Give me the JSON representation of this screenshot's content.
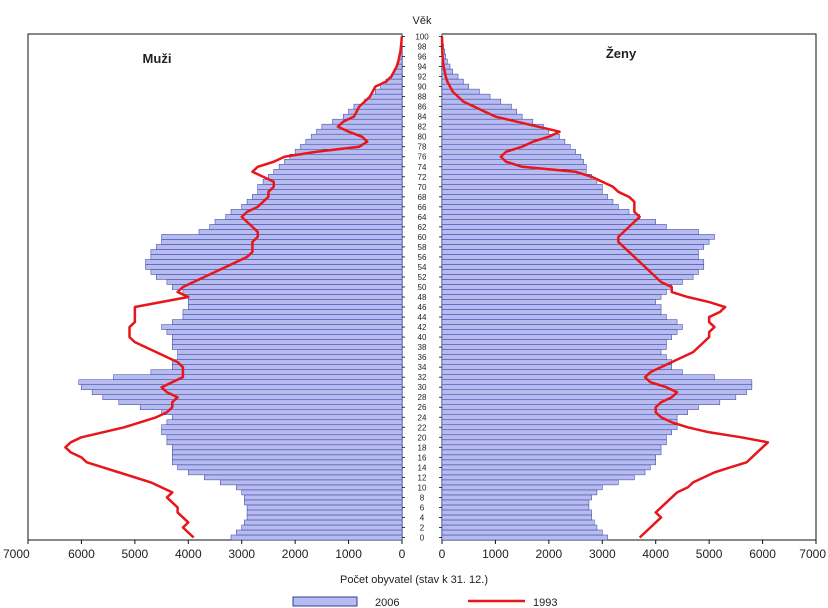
{
  "chart_data": {
    "type": "bar",
    "subtype": "population-pyramid",
    "title": "",
    "center_label": "Věk",
    "xlabel": "Počet obyvatel (stav k 31. 12.)",
    "panels": [
      {
        "name": "Muži",
        "side": "left"
      },
      {
        "name": "Ženy",
        "side": "right"
      }
    ],
    "xlim": [
      0,
      7000
    ],
    "x_ticks": [
      0,
      1000,
      2000,
      3000,
      4000,
      5000,
      6000,
      7000
    ],
    "age_range": [
      0,
      100
    ],
    "age_ticks": [
      0,
      2,
      4,
      6,
      8,
      10,
      12,
      14,
      16,
      18,
      20,
      22,
      24,
      26,
      28,
      30,
      32,
      34,
      36,
      38,
      40,
      42,
      44,
      46,
      48,
      50,
      52,
      54,
      56,
      58,
      60,
      62,
      64,
      66,
      68,
      70,
      72,
      74,
      76,
      78,
      80,
      82,
      84,
      86,
      88,
      90,
      92,
      94,
      96,
      98,
      100
    ],
    "legend": [
      {
        "label": "2006",
        "type": "bar",
        "color": "#b7bbee"
      },
      {
        "label": "1993",
        "type": "line",
        "color": "#e8161b"
      }
    ],
    "colors": {
      "bar_fill": "#b7bbee",
      "bar_stroke": "#2e3fa6",
      "line": "#e8161b"
    },
    "series": [
      {
        "name": "2006",
        "sex": "Muži",
        "values": [
          3200,
          3100,
          3000,
          2950,
          2900,
          2900,
          2900,
          2950,
          2950,
          3000,
          3100,
          3400,
          3700,
          4000,
          4200,
          4300,
          4300,
          4300,
          4300,
          4400,
          4400,
          4500,
          4500,
          4400,
          4300,
          4500,
          4900,
          5300,
          5600,
          5800,
          6000,
          6050,
          5400,
          4700,
          4300,
          4300,
          4200,
          4200,
          4300,
          4300,
          4300,
          4400,
          4500,
          4300,
          4100,
          4100,
          4000,
          4000,
          4000,
          4100,
          4300,
          4400,
          4600,
          4700,
          4800,
          4800,
          4700,
          4700,
          4600,
          4500,
          4500,
          3800,
          3600,
          3500,
          3300,
          3200,
          3000,
          2900,
          2800,
          2700,
          2700,
          2600,
          2500,
          2400,
          2300,
          2200,
          2100,
          2000,
          1900,
          1800,
          1700,
          1600,
          1500,
          1300,
          1100,
          1000,
          900,
          700,
          600,
          500,
          400,
          300,
          200,
          150,
          100,
          70,
          50,
          30,
          20,
          10,
          5
        ]
      },
      {
        "name": "1993",
        "sex": "Muži",
        "values": [
          3900,
          4000,
          4100,
          4000,
          4100,
          4200,
          4200,
          4300,
          4400,
          4300,
          4500,
          4700,
          5000,
          5300,
          5600,
          5900,
          6000,
          6200,
          6300,
          6200,
          6000,
          5600,
          5200,
          4900,
          4600,
          4400,
          4300,
          4300,
          4200,
          4400,
          4500,
          4300,
          4100,
          4100,
          4100,
          4200,
          4400,
          4600,
          4800,
          5000,
          5100,
          5100,
          5100,
          5000,
          5000,
          5000,
          5000,
          4500,
          4000,
          4200,
          4100,
          3900,
          3700,
          3500,
          3300,
          3100,
          2900,
          2800,
          2800,
          2800,
          2700,
          2700,
          2800,
          2900,
          3000,
          2900,
          2700,
          2600,
          2500,
          2500,
          2400,
          2400,
          2600,
          2800,
          2700,
          2400,
          2200,
          1600,
          800,
          650,
          750,
          1000,
          1200,
          1100,
          900,
          850,
          800,
          700,
          600,
          550,
          500,
          300,
          200,
          150,
          100,
          70,
          50,
          30,
          20,
          10,
          5
        ]
      },
      {
        "name": "2006",
        "sex": "Ženy",
        "values": [
          3100,
          3000,
          2900,
          2850,
          2800,
          2800,
          2750,
          2750,
          2800,
          2900,
          3000,
          3300,
          3600,
          3800,
          3900,
          4000,
          4000,
          4100,
          4100,
          4200,
          4200,
          4300,
          4400,
          4400,
          4400,
          4600,
          4800,
          5200,
          5500,
          5700,
          5800,
          5800,
          5100,
          4500,
          4300,
          4300,
          4200,
          4100,
          4200,
          4200,
          4300,
          4400,
          4500,
          4400,
          4200,
          4100,
          4100,
          4000,
          4100,
          4200,
          4300,
          4500,
          4700,
          4800,
          4900,
          4900,
          4800,
          4800,
          4900,
          5000,
          5100,
          4800,
          4200,
          4000,
          3700,
          3500,
          3300,
          3200,
          3100,
          3000,
          3000,
          2900,
          2800,
          2700,
          2700,
          2650,
          2600,
          2500,
          2400,
          2300,
          2200,
          2000,
          1900,
          1700,
          1500,
          1400,
          1300,
          1100,
          900,
          700,
          500,
          400,
          300,
          200,
          150,
          100,
          70,
          50,
          30,
          15,
          5
        ]
      },
      {
        "name": "1993",
        "sex": "Ženy",
        "values": [
          3700,
          3800,
          3900,
          4000,
          4100,
          4000,
          4100,
          4200,
          4300,
          4400,
          4600,
          4700,
          4900,
          5100,
          5400,
          5700,
          5800,
          5900,
          6000,
          6100,
          5600,
          5000,
          4600,
          4300,
          4100,
          4000,
          4000,
          4100,
          4300,
          4400,
          4200,
          3900,
          3800,
          3900,
          4100,
          4300,
          4500,
          4700,
          4800,
          4900,
          5000,
          5000,
          5100,
          5000,
          5000,
          5200,
          5300,
          5000,
          4600,
          4300,
          4300,
          4100,
          4000,
          3900,
          3800,
          3700,
          3600,
          3500,
          3400,
          3300,
          3300,
          3400,
          3500,
          3600,
          3700,
          3600,
          3600,
          3600,
          3500,
          3300,
          3200,
          3000,
          2800,
          2500,
          1500,
          1200,
          1100,
          1200,
          1500,
          1700,
          2000,
          2200,
          1800,
          1400,
          1000,
          800,
          600,
          400,
          300,
          200,
          150,
          100,
          70,
          50,
          30,
          20,
          10,
          5,
          3,
          2,
          1
        ]
      }
    ]
  }
}
